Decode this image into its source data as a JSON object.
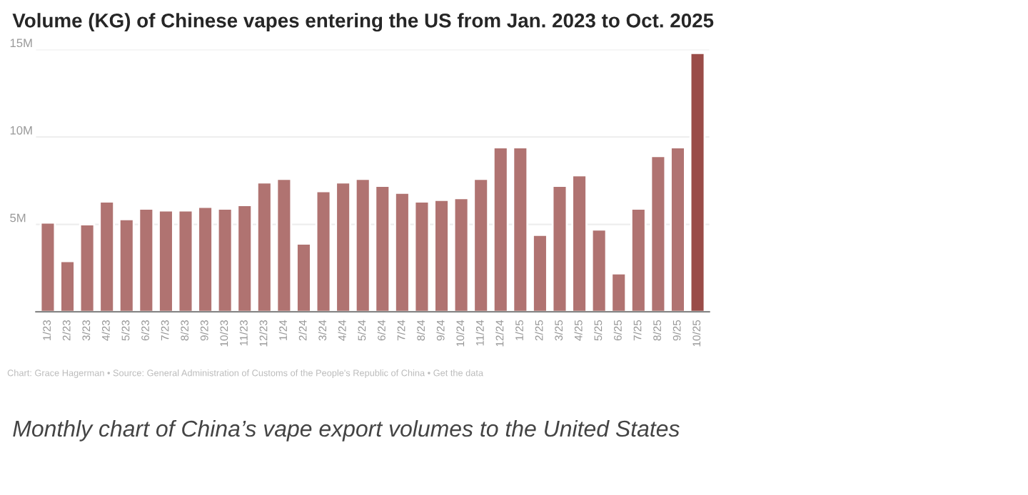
{
  "chart_data": {
    "type": "bar",
    "title": "Volume (KG) of Chinese vapes entering the US from Jan. 2023 to Oct. 2025",
    "categories": [
      "1/23",
      "2/23",
      "3/23",
      "4/23",
      "5/23",
      "6/23",
      "7/23",
      "8/23",
      "9/23",
      "10/23",
      "11/23",
      "12/23",
      "1/24",
      "2/24",
      "3/24",
      "4/24",
      "5/24",
      "6/24",
      "7/24",
      "8/24",
      "9/24",
      "10/24",
      "11/24",
      "12/24",
      "1/25",
      "2/25",
      "3/25",
      "4/25",
      "5/25",
      "6/25",
      "7/25",
      "8/25",
      "9/25",
      "10/25"
    ],
    "values": [
      5.1,
      2.9,
      5.0,
      6.3,
      5.3,
      5.9,
      5.8,
      5.8,
      6.0,
      5.9,
      6.1,
      7.4,
      7.6,
      3.9,
      6.9,
      7.4,
      7.6,
      7.2,
      6.8,
      6.3,
      6.4,
      6.5,
      7.6,
      9.4,
      9.4,
      4.4,
      7.2,
      7.8,
      4.7,
      2.2,
      5.9,
      8.9,
      9.4,
      14.8
    ],
    "colors": [
      "#bb6966",
      "#bb6966",
      "#bb6966",
      "#bb6966",
      "#bb6966",
      "#bb6966",
      "#bb6966",
      "#bb6966",
      "#bb6966",
      "#bb6966",
      "#bb6966",
      "#bb6966",
      "#bb6966",
      "#bb6966",
      "#bb6966",
      "#bb6966",
      "#bb6966",
      "#bb6966",
      "#bb6966",
      "#bb6966",
      "#bb6966",
      "#bb6966",
      "#bb6966",
      "#bb6966",
      "#bb6966",
      "#bb6966",
      "#bb6966",
      "#bb6966",
      "#bb6966",
      "#bb6966",
      "#bb6966",
      "#bb6966",
      "#bb6966",
      "#a8403a"
    ],
    "ylim": [
      0,
      15
    ],
    "yticks": [
      {
        "value": 5,
        "label": "5M"
      },
      {
        "value": 10,
        "label": "10M"
      },
      {
        "value": 15,
        "label": "15M"
      }
    ],
    "grid": "y",
    "annotations": [
      "Chart: Grace Hagerman • Source: General Administration of Customs of the People's Republic of China • Get the data",
      "Monthly chart of China’s vape export volumes to the United States"
    ]
  }
}
